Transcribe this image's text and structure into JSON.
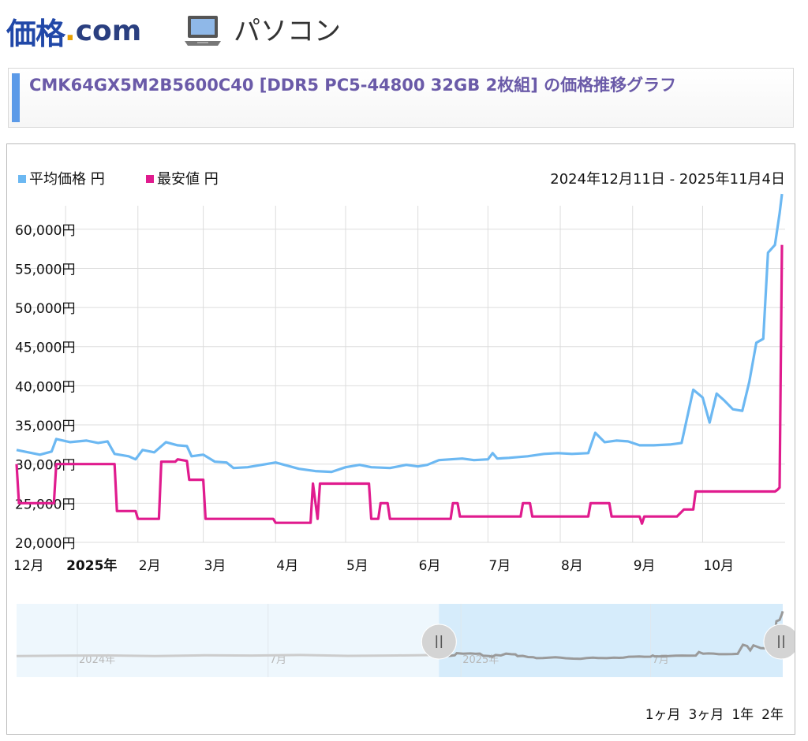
{
  "header": {
    "logo_main": "価格",
    "logo_dot": ".",
    "logo_com": "com",
    "category": "パソコン",
    "category_icon": "laptop-icon"
  },
  "page": {
    "title": "CMK64GX5M2B5600C40 [DDR5 PC5-44800 32GB 2枚組] の価格推移グラフ"
  },
  "range_buttons": [
    "1ヶ月",
    "3ヶ月",
    "1年",
    "2年"
  ],
  "chart_data": {
    "type": "line",
    "date_range": "2024年12月11日 - 2025年11月4日",
    "start": "2024-12-11",
    "end": "2025-11-04",
    "series": [
      {
        "name": "平均価格 円",
        "color": "#6cb8f2",
        "points": [
          [
            "2024-12-11",
            31800
          ],
          [
            "2024-12-16",
            31500
          ],
          [
            "2024-12-21",
            31200
          ],
          [
            "2024-12-26",
            31600
          ],
          [
            "2024-12-28",
            33200
          ],
          [
            "2025-01-03",
            32800
          ],
          [
            "2025-01-10",
            33000
          ],
          [
            "2025-01-15",
            32700
          ],
          [
            "2025-01-19",
            32900
          ],
          [
            "2025-01-22",
            31300
          ],
          [
            "2025-01-28",
            31000
          ],
          [
            "2025-01-31",
            30600
          ],
          [
            "2025-02-03",
            31800
          ],
          [
            "2025-02-08",
            31500
          ],
          [
            "2025-02-13",
            32800
          ],
          [
            "2025-02-18",
            32400
          ],
          [
            "2025-02-22",
            32300
          ],
          [
            "2025-02-24",
            31000
          ],
          [
            "2025-03-01",
            31200
          ],
          [
            "2025-03-06",
            30300
          ],
          [
            "2025-03-11",
            30200
          ],
          [
            "2025-03-14",
            29500
          ],
          [
            "2025-03-20",
            29600
          ],
          [
            "2025-03-26",
            29900
          ],
          [
            "2025-04-01",
            30200
          ],
          [
            "2025-04-06",
            29800
          ],
          [
            "2025-04-11",
            29400
          ],
          [
            "2025-04-18",
            29100
          ],
          [
            "2025-04-25",
            29000
          ],
          [
            "2025-05-01",
            29600
          ],
          [
            "2025-05-07",
            29900
          ],
          [
            "2025-05-12",
            29600
          ],
          [
            "2025-05-20",
            29500
          ],
          [
            "2025-05-27",
            29900
          ],
          [
            "2025-06-01",
            29700
          ],
          [
            "2025-06-05",
            29900
          ],
          [
            "2025-06-10",
            30500
          ],
          [
            "2025-06-15",
            30600
          ],
          [
            "2025-06-20",
            30700
          ],
          [
            "2025-06-25",
            30500
          ],
          [
            "2025-07-01",
            30600
          ],
          [
            "2025-07-03",
            31400
          ],
          [
            "2025-07-05",
            30700
          ],
          [
            "2025-07-10",
            30800
          ],
          [
            "2025-07-18",
            31000
          ],
          [
            "2025-07-25",
            31300
          ],
          [
            "2025-07-31",
            31400
          ],
          [
            "2025-08-06",
            31300
          ],
          [
            "2025-08-13",
            31400
          ],
          [
            "2025-08-16",
            34000
          ],
          [
            "2025-08-20",
            32800
          ],
          [
            "2025-08-25",
            33000
          ],
          [
            "2025-08-30",
            32900
          ],
          [
            "2025-09-04",
            32400
          ],
          [
            "2025-09-10",
            32400
          ],
          [
            "2025-09-17",
            32500
          ],
          [
            "2025-09-22",
            32700
          ],
          [
            "2025-09-27",
            39500
          ],
          [
            "2025-10-01",
            38500
          ],
          [
            "2025-10-04",
            35300
          ],
          [
            "2025-10-07",
            39000
          ],
          [
            "2025-10-10",
            38200
          ],
          [
            "2025-10-14",
            37000
          ],
          [
            "2025-10-18",
            36800
          ],
          [
            "2025-10-21",
            40500
          ],
          [
            "2025-10-24",
            45500
          ],
          [
            "2025-10-27",
            46000
          ],
          [
            "2025-10-29",
            57000
          ],
          [
            "2025-11-01",
            58000
          ],
          [
            "2025-11-03",
            62000
          ],
          [
            "2025-11-04",
            64500
          ]
        ]
      },
      {
        "name": "最安値 円",
        "color": "#e01b8e",
        "points": [
          [
            "2024-12-11",
            30000
          ],
          [
            "2024-12-12",
            25000
          ],
          [
            "2024-12-27",
            25000
          ],
          [
            "2024-12-28",
            30000
          ],
          [
            "2025-01-22",
            30000
          ],
          [
            "2025-01-23",
            24000
          ],
          [
            "2025-01-31",
            24000
          ],
          [
            "2025-02-01",
            23000
          ],
          [
            "2025-02-10",
            23000
          ],
          [
            "2025-02-11",
            30300
          ],
          [
            "2025-02-17",
            30300
          ],
          [
            "2025-02-18",
            30600
          ],
          [
            "2025-02-22",
            30400
          ],
          [
            "2025-02-23",
            28000
          ],
          [
            "2025-03-01",
            28000
          ],
          [
            "2025-03-02",
            23000
          ],
          [
            "2025-03-31",
            23000
          ],
          [
            "2025-04-01",
            22500
          ],
          [
            "2025-04-16",
            22500
          ],
          [
            "2025-04-17",
            27500
          ],
          [
            "2025-04-19",
            23000
          ],
          [
            "2025-04-20",
            27500
          ],
          [
            "2025-05-11",
            27500
          ],
          [
            "2025-05-12",
            23000
          ],
          [
            "2025-05-15",
            23000
          ],
          [
            "2025-05-16",
            25000
          ],
          [
            "2025-05-19",
            25000
          ],
          [
            "2025-05-20",
            23000
          ],
          [
            "2025-06-15",
            23000
          ],
          [
            "2025-06-16",
            25000
          ],
          [
            "2025-06-18",
            25000
          ],
          [
            "2025-06-19",
            23300
          ],
          [
            "2025-07-15",
            23300
          ],
          [
            "2025-07-16",
            25000
          ],
          [
            "2025-07-19",
            25000
          ],
          [
            "2025-07-20",
            23300
          ],
          [
            "2025-08-13",
            23300
          ],
          [
            "2025-08-14",
            25000
          ],
          [
            "2025-08-22",
            25000
          ],
          [
            "2025-08-23",
            23300
          ],
          [
            "2025-09-04",
            23300
          ],
          [
            "2025-09-05",
            22400
          ],
          [
            "2025-09-06",
            23300
          ],
          [
            "2025-09-20",
            23300
          ],
          [
            "2025-09-23",
            24200
          ],
          [
            "2025-09-27",
            24200
          ],
          [
            "2025-09-28",
            26500
          ],
          [
            "2025-11-01",
            26500
          ],
          [
            "2025-11-02",
            26700
          ],
          [
            "2025-11-03",
            27000
          ],
          [
            "2025-11-04",
            58000
          ]
        ]
      }
    ],
    "y_ticks": [
      20000,
      25000,
      30000,
      35000,
      40000,
      45000,
      50000,
      55000,
      60000
    ],
    "y_tick_labels": [
      "20,000円",
      "25,000円",
      "30,000円",
      "35,000円",
      "40,000円",
      "45,000円",
      "50,000円",
      "55,000円",
      "60,000円"
    ],
    "ylim": [
      20000,
      63000
    ],
    "x_ticks": [
      {
        "date": "2024-12-01",
        "label": "12月",
        "bold": false
      },
      {
        "date": "2025-01-01",
        "label": "2025年",
        "bold": true
      },
      {
        "date": "2025-02-01",
        "label": "2月",
        "bold": false
      },
      {
        "date": "2025-03-01",
        "label": "3月",
        "bold": false
      },
      {
        "date": "2025-04-01",
        "label": "4月",
        "bold": false
      },
      {
        "date": "2025-05-01",
        "label": "5月",
        "bold": false
      },
      {
        "date": "2025-06-01",
        "label": "6月",
        "bold": false
      },
      {
        "date": "2025-07-01",
        "label": "7月",
        "bold": false
      },
      {
        "date": "2025-08-01",
        "label": "8月",
        "bold": false
      },
      {
        "date": "2025-09-01",
        "label": "9月",
        "bold": false
      },
      {
        "date": "2025-10-01",
        "label": "10月",
        "bold": false
      }
    ],
    "grid": true,
    "legend_position": "top-left",
    "navigator": {
      "start": "2023-11-04",
      "end": "2025-11-04",
      "selected_start": "2024-12-11",
      "selected_end": "2025-11-04",
      "labels": [
        {
          "date": "2024-01-01",
          "label": "2024年"
        },
        {
          "date": "2024-07-01",
          "label": "7月"
        },
        {
          "date": "2025-01-01",
          "label": "2025年"
        },
        {
          "date": "2025-07-01",
          "label": "7月"
        }
      ],
      "history_points": [
        [
          "2023-11-04",
          31000
        ],
        [
          "2023-12-15",
          31300
        ],
        [
          "2024-02-01",
          31500
        ],
        [
          "2024-03-15",
          31000
        ],
        [
          "2024-05-01",
          31600
        ],
        [
          "2024-06-15",
          31400
        ],
        [
          "2024-08-01",
          31800
        ],
        [
          "2024-09-15",
          31200
        ],
        [
          "2024-11-01",
          31500
        ],
        [
          "2024-12-10",
          31800
        ]
      ]
    }
  }
}
